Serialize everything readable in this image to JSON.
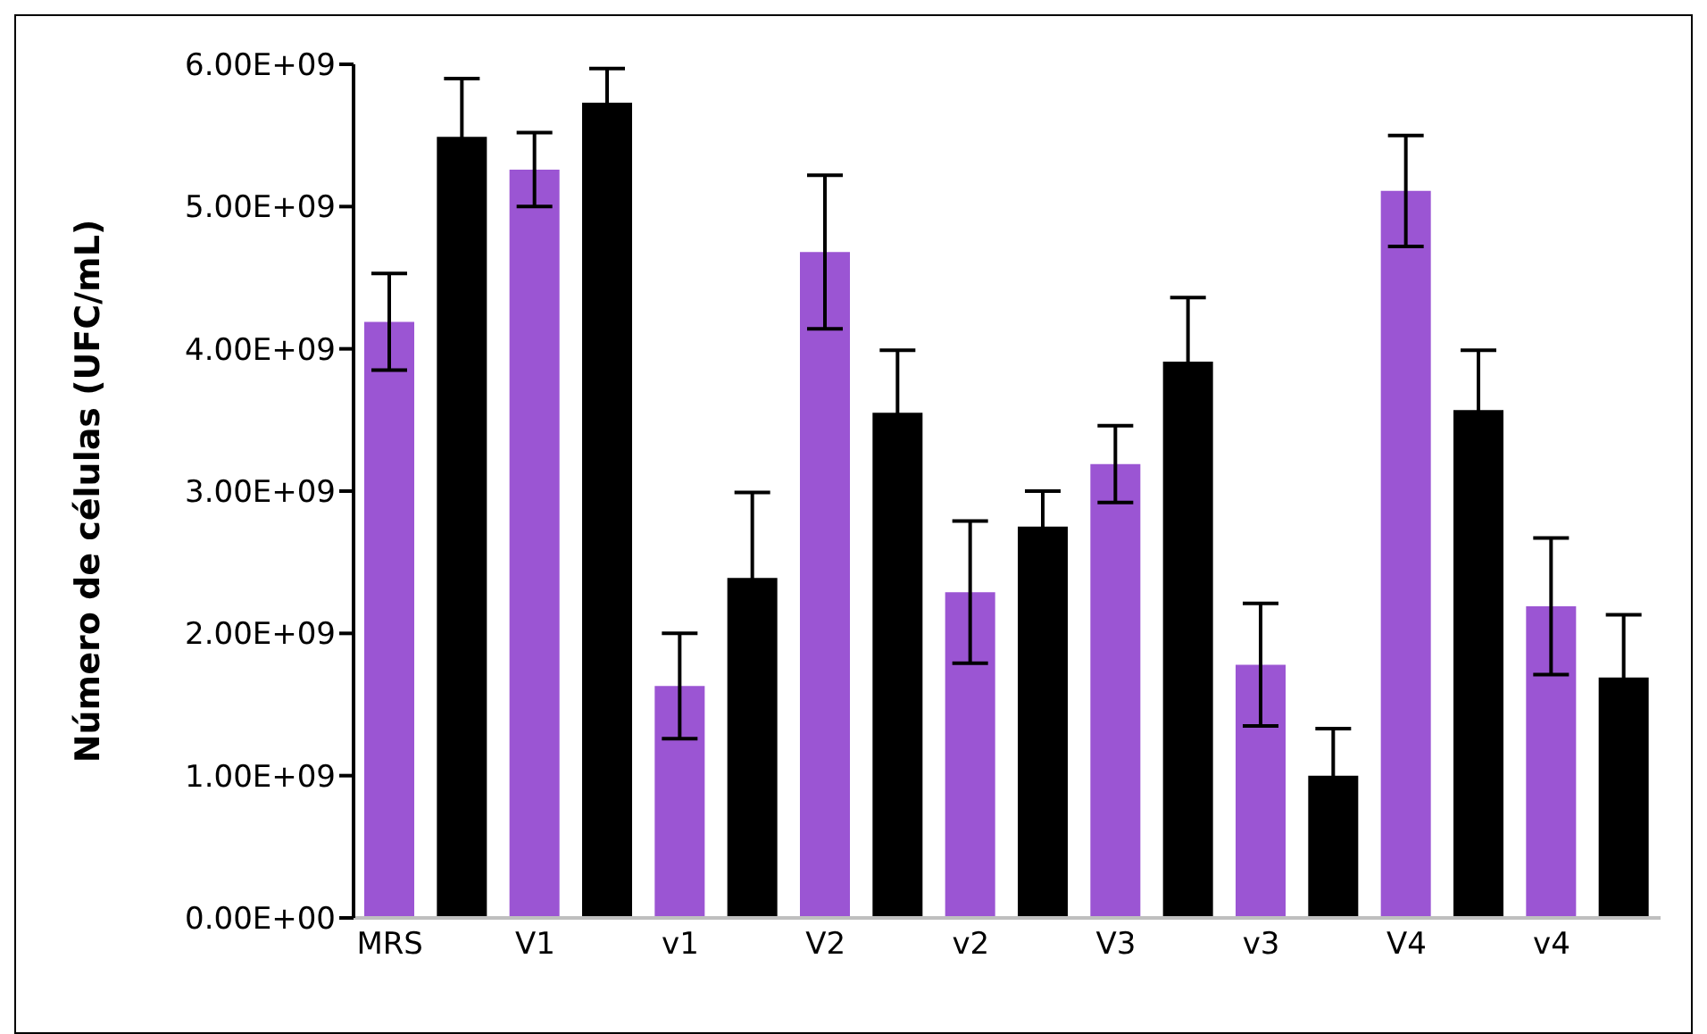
{
  "chart_data": {
    "type": "bar",
    "ylabel": "Número de células (UFC/mL)",
    "categories": [
      "MRS",
      null,
      "V1",
      null,
      "v1",
      null,
      "V2",
      null,
      "v2",
      null,
      "V3",
      null,
      "v3",
      null,
      "V4",
      null,
      "v4",
      null
    ],
    "values": [
      4190000000,
      5490000000,
      5260000000,
      5730000000,
      1630000000,
      2390000000,
      4680000000,
      3550000000,
      2290000000,
      2750000000,
      3190000000,
      3910000000,
      1780000000,
      1000000000,
      5110000000,
      3570000000,
      2190000000,
      1690000000
    ],
    "errors": [
      340000000,
      410000000,
      260000000,
      240000000,
      370000000,
      600000000,
      540000000,
      440000000,
      500000000,
      250000000,
      270000000,
      450000000,
      430000000,
      330000000,
      390000000,
      420000000,
      480000000,
      440000000
    ],
    "colors": [
      "#9b55d3",
      "#000000",
      "#9b55d3",
      "#000000",
      "#9b55d3",
      "#000000",
      "#9b55d3",
      "#000000",
      "#9b55d3",
      "#000000",
      "#9b55d3",
      "#000000",
      "#9b55d3",
      "#000000",
      "#9b55d3",
      "#000000",
      "#9b55d3",
      "#000000"
    ],
    "ylim": [
      0,
      6000000000
    ],
    "yticks": [
      {
        "value": 0,
        "label": "0.00E+00"
      },
      {
        "value": 1000000000,
        "label": "1.00E+09"
      },
      {
        "value": 2000000000,
        "label": "2.00E+09"
      },
      {
        "value": 3000000000,
        "label": "3.00E+09"
      },
      {
        "value": 4000000000,
        "label": "4.00E+09"
      },
      {
        "value": 5000000000,
        "label": "5.00E+09"
      },
      {
        "value": 6000000000,
        "label": "6.00E+09"
      }
    ]
  }
}
